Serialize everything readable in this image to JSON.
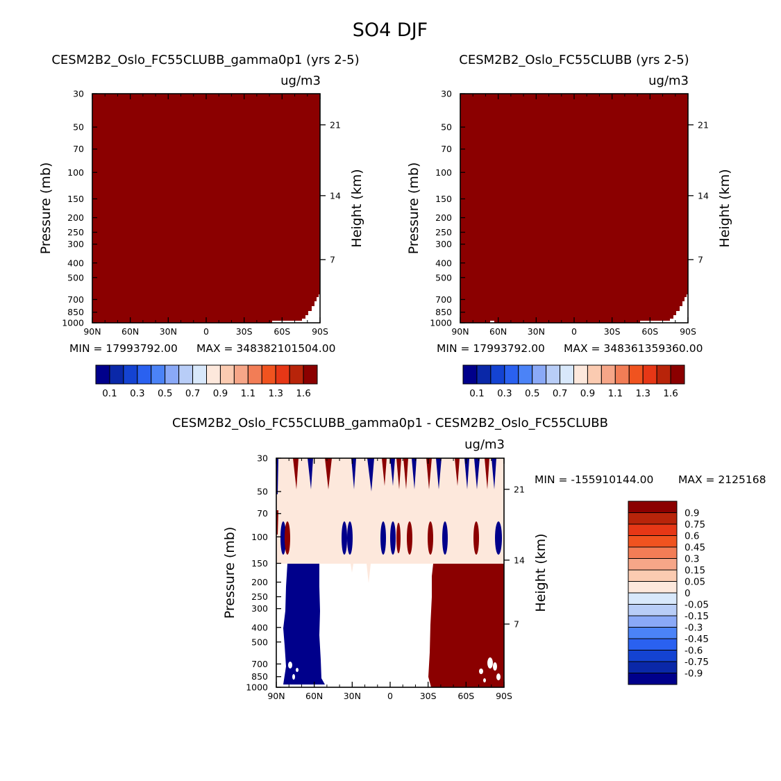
{
  "figure_title": "SO4 DJF",
  "chart_data": [
    {
      "type": "heatmap",
      "title": "CESM2B2_Oslo_FC55CLUBB_gamma0p1 (yrs 2-5)",
      "units": "ug/m3",
      "ylabel": "Pressure (mb)",
      "ylabel_right": "Height (km)",
      "x_ticks": [
        "90N",
        "60N",
        "30N",
        "0",
        "30S",
        "60S",
        "90S"
      ],
      "y_ticks": [
        "30",
        "50",
        "70",
        "100",
        "150",
        "200",
        "250",
        "300",
        "400",
        "500",
        "700",
        "850",
        "1000"
      ],
      "y_ticks_right": [
        "21",
        "14",
        "7"
      ],
      "stats": {
        "min_text": "MIN = 17993792.00",
        "max_text": "MAX = 348382101504.00"
      },
      "fill_description": "field saturates at top color level (dark red) everywhere except small missing region near surface at southern high latitudes",
      "colorbar": {
        "orientation": "horizontal",
        "labels": [
          "0.1",
          "0.3",
          "0.5",
          "0.7",
          "0.9",
          "1.1",
          "1.3",
          "1.6"
        ],
        "colors": [
          "#00008b",
          "#0a28a8",
          "#1443d2",
          "#2a61f0",
          "#4b83f7",
          "#8aa9f7",
          "#b8cdf7",
          "#d8e8fb",
          "#fde8dc",
          "#fbcbb1",
          "#f6a688",
          "#f27d56",
          "#f0531f",
          "#e63716",
          "#b8240a",
          "#8b0000"
        ]
      }
    },
    {
      "type": "heatmap",
      "title": "CESM2B2_Oslo_FC55CLUBB (yrs 2-5)",
      "units": "ug/m3",
      "ylabel": "Pressure (mb)",
      "ylabel_right": "Height (km)",
      "x_ticks": [
        "90N",
        "60N",
        "30N",
        "0",
        "30S",
        "60S",
        "90S"
      ],
      "y_ticks": [
        "30",
        "50",
        "70",
        "100",
        "150",
        "200",
        "250",
        "300",
        "400",
        "500",
        "700",
        "850",
        "1000"
      ],
      "y_ticks_right": [
        "21",
        "14",
        "7"
      ],
      "stats": {
        "min_text": "MIN = 17993792.00",
        "max_text": "MAX = 348361359360.00"
      },
      "fill_description": "field saturates at top color level (dark red) everywhere except small missing region near surface at southern high latitudes",
      "colorbar": {
        "orientation": "horizontal",
        "labels": [
          "0.1",
          "0.3",
          "0.5",
          "0.7",
          "0.9",
          "1.1",
          "1.3",
          "1.6"
        ],
        "colors": [
          "#00008b",
          "#0a28a8",
          "#1443d2",
          "#2a61f0",
          "#4b83f7",
          "#8aa9f7",
          "#b8cdf7",
          "#d8e8fb",
          "#fde8dc",
          "#fbcbb1",
          "#f6a688",
          "#f27d56",
          "#f0531f",
          "#e63716",
          "#b8240a",
          "#8b0000"
        ]
      }
    },
    {
      "type": "heatmap",
      "title": "CESM2B2_Oslo_FC55CLUBB_gamma0p1 - CESM2B2_Oslo_FC55CLUBB",
      "units": "ug/m3",
      "ylabel": "Pressure (mb)",
      "ylabel_right": "Height (km)",
      "x_ticks": [
        "90N",
        "60N",
        "30N",
        "0",
        "30S",
        "60S",
        "90S"
      ],
      "y_ticks": [
        "30",
        "50",
        "70",
        "100",
        "150",
        "200",
        "250",
        "300",
        "400",
        "500",
        "700",
        "850",
        "1000"
      ],
      "y_ticks_right": [
        "21",
        "14",
        "7"
      ],
      "stats": {
        "min_text": "MIN = -155910144.00",
        "max_text": "MAX = 2125168"
      },
      "fill_description": "small positive (light) difference above 150 mb with alternating red/blue spikes; below 150 mb strongly negative (dark blue) 60-85N, no difference 55N-30S, strongly positive (dark red) 30S-90S",
      "colorbar": {
        "orientation": "vertical",
        "labels": [
          "0.9",
          "0.75",
          "0.6",
          "0.45",
          "0.3",
          "0.15",
          "0.05",
          "0",
          "-0.05",
          "-0.15",
          "-0.3",
          "-0.45",
          "-0.6",
          "-0.75",
          "-0.9"
        ],
        "colors": [
          "#8b0000",
          "#b8240a",
          "#e63716",
          "#f0531f",
          "#f27d56",
          "#f6a688",
          "#fbcbb1",
          "#fde8dc",
          "#d8e8fb",
          "#b8cdf7",
          "#8aa9f7",
          "#4b83f7",
          "#2a61f0",
          "#1443d2",
          "#0a28a8",
          "#00008b"
        ]
      }
    }
  ]
}
